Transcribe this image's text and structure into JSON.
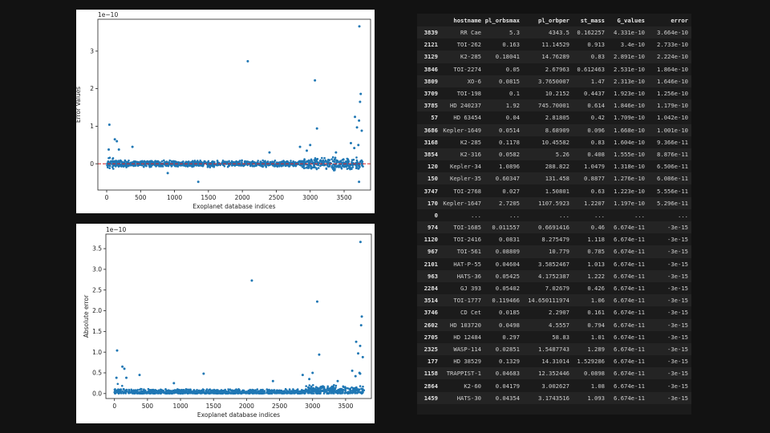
{
  "chart_data": [
    {
      "type": "scatter",
      "title": "",
      "xlabel": "Exoplanet database indices",
      "ylabel": "Error Values",
      "offset_label": "1e−10",
      "xlim": [
        -130,
        3890
      ],
      "ylim": [
        -0.7,
        3.85
      ],
      "xticks": [
        0,
        500,
        1000,
        1500,
        2000,
        2500,
        3000,
        3500
      ],
      "yticks": [
        0,
        1,
        2,
        3
      ],
      "reference_line": {
        "y": 0,
        "color": "#d62728",
        "style": "dashed"
      },
      "marker_color": "#1f77b4",
      "grid": false,
      "outliers": [
        {
          "x": 3725,
          "y": 3.66
        },
        {
          "x": 2080,
          "y": 2.73
        },
        {
          "x": 3070,
          "y": 2.22
        },
        {
          "x": 3745,
          "y": 1.86
        },
        {
          "x": 3735,
          "y": 1.65
        },
        {
          "x": 3660,
          "y": 1.25
        },
        {
          "x": 3720,
          "y": 1.15
        },
        {
          "x": 40,
          "y": 1.04
        },
        {
          "x": 3100,
          "y": 0.94
        },
        {
          "x": 3690,
          "y": 0.97
        },
        {
          "x": 3760,
          "y": 0.88
        },
        {
          "x": 120,
          "y": 0.65
        },
        {
          "x": 150,
          "y": 0.6
        },
        {
          "x": 3600,
          "y": 0.55
        },
        {
          "x": 2850,
          "y": 0.45
        },
        {
          "x": 380,
          "y": 0.45
        },
        {
          "x": 3710,
          "y": 0.5
        },
        {
          "x": 3650,
          "y": 0.42
        },
        {
          "x": 2950,
          "y": 0.35
        },
        {
          "x": 180,
          "y": 0.38
        },
        {
          "x": 30,
          "y": 0.38
        },
        {
          "x": 1350,
          "y": -0.48
        },
        {
          "x": 3720,
          "y": -0.48
        },
        {
          "x": 900,
          "y": -0.25
        },
        {
          "x": 3000,
          "y": 0.5
        },
        {
          "x": 3380,
          "y": 0.3
        },
        {
          "x": 2400,
          "y": 0.3
        }
      ]
    },
    {
      "type": "scatter",
      "title": "",
      "xlabel": "Exoplanet database indices",
      "ylabel": "Absolute error",
      "offset_label": "1e−10",
      "xlim": [
        -130,
        3890
      ],
      "ylim": [
        -0.12,
        3.85
      ],
      "xticks": [
        0,
        500,
        1000,
        1500,
        2000,
        2500,
        3000,
        3500
      ],
      "yticks": [
        0.0,
        0.5,
        1.0,
        1.5,
        2.0,
        2.5,
        3.0,
        3.5
      ],
      "ytick_labels": [
        "0.0",
        "0.5",
        "1.0",
        "1.5",
        "2.0",
        "2.5",
        "3.0",
        "3.5"
      ],
      "marker_color": "#1f77b4",
      "grid": false,
      "outliers": [
        {
          "x": 3725,
          "y": 3.66
        },
        {
          "x": 2080,
          "y": 2.73
        },
        {
          "x": 3070,
          "y": 2.22
        },
        {
          "x": 3745,
          "y": 1.86
        },
        {
          "x": 3735,
          "y": 1.65
        },
        {
          "x": 3660,
          "y": 1.25
        },
        {
          "x": 3720,
          "y": 1.15
        },
        {
          "x": 40,
          "y": 1.04
        },
        {
          "x": 3100,
          "y": 0.94
        },
        {
          "x": 3690,
          "y": 0.97
        },
        {
          "x": 3760,
          "y": 0.88
        },
        {
          "x": 120,
          "y": 0.65
        },
        {
          "x": 150,
          "y": 0.6
        },
        {
          "x": 3600,
          "y": 0.55
        },
        {
          "x": 2850,
          "y": 0.45
        },
        {
          "x": 380,
          "y": 0.45
        },
        {
          "x": 1350,
          "y": 0.48
        },
        {
          "x": 3710,
          "y": 0.5
        },
        {
          "x": 3650,
          "y": 0.42
        },
        {
          "x": 2950,
          "y": 0.35
        },
        {
          "x": 180,
          "y": 0.38
        },
        {
          "x": 30,
          "y": 0.38
        },
        {
          "x": 3720,
          "y": 0.48
        },
        {
          "x": 3000,
          "y": 0.5
        },
        {
          "x": 900,
          "y": 0.25
        },
        {
          "x": 3380,
          "y": 0.3
        },
        {
          "x": 2400,
          "y": 0.3
        }
      ]
    },
    {
      "type": "table",
      "columns": [
        "",
        "hostname",
        "pl_orbsmax",
        "pl_orbper",
        "st_mass",
        "G_values",
        "error"
      ],
      "rows": [
        [
          "3839",
          "RR Cae",
          "5.3",
          "4343.5",
          "0.162257",
          "4.331e-10",
          "3.664e-10"
        ],
        [
          "2121",
          "TOI-262",
          "0.163",
          "11.14529",
          "0.913",
          "3.4e-10",
          "2.733e-10"
        ],
        [
          "3129",
          "K2-285",
          "0.18041",
          "14.76289",
          "0.83",
          "2.891e-10",
          "2.224e-10"
        ],
        [
          "3846",
          "TOI-2274",
          "0.05",
          "2.67963",
          "0.612463",
          "2.531e-10",
          "1.864e-10"
        ],
        [
          "3809",
          "XO-6",
          "0.0815",
          "3.7650007",
          "1.47",
          "2.313e-10",
          "1.646e-10"
        ],
        [
          "3709",
          "TOI-198",
          "0.1",
          "10.2152",
          "0.4437",
          "1.923e-10",
          "1.256e-10"
        ],
        [
          "3785",
          "HD 240237",
          "1.92",
          "745.70001",
          "0.614",
          "1.846e-10",
          "1.179e-10"
        ],
        [
          "57",
          "HD 63454",
          "0.04",
          "2.81805",
          "0.42",
          "1.709e-10",
          "1.042e-10"
        ],
        [
          "3686",
          "Kepler-1649",
          "0.0514",
          "8.68909",
          "0.096",
          "1.668e-10",
          "1.001e-10"
        ],
        [
          "3168",
          "K2-285",
          "0.1178",
          "10.45582",
          "0.83",
          "1.604e-10",
          "9.366e-11"
        ],
        [
          "3854",
          "K2-316",
          "0.0582",
          "5.26",
          "0.408",
          "1.555e-10",
          "8.876e-11"
        ],
        [
          "120",
          "Kepler-34",
          "1.0896",
          "288.822",
          "1.0479",
          "1.318e-10",
          "6.506e-11"
        ],
        [
          "150",
          "Kepler-35",
          "0.60347",
          "131.458",
          "0.8877",
          "1.276e-10",
          "6.086e-11"
        ],
        [
          "3747",
          "TOI-2768",
          "0.027",
          "1.50801",
          "0.63",
          "1.223e-10",
          "5.556e-11"
        ],
        [
          "170",
          "Kepler-1647",
          "2.7205",
          "1107.5923",
          "1.2207",
          "1.197e-10",
          "5.296e-11"
        ],
        [
          "0",
          "...",
          "...",
          "...",
          "...",
          "...",
          "..."
        ],
        [
          "974",
          "TOI-1685",
          "0.011557",
          "0.6691416",
          "0.46",
          "6.674e-11",
          "-3e-15"
        ],
        [
          "1120",
          "TOI-2416",
          "0.0831",
          "8.275479",
          "1.118",
          "6.674e-11",
          "-3e-15"
        ],
        [
          "967",
          "TOI-561",
          "0.08809",
          "10.779",
          "0.785",
          "6.674e-11",
          "-3e-15"
        ],
        [
          "2101",
          "HAT-P-55",
          "0.04604",
          "3.5852467",
          "1.013",
          "6.674e-11",
          "-3e-15"
        ],
        [
          "963",
          "HATS-36",
          "0.05425",
          "4.1752387",
          "1.222",
          "6.674e-11",
          "-3e-15"
        ],
        [
          "2284",
          "GJ 393",
          "0.05402",
          "7.02679",
          "0.426",
          "6.674e-11",
          "-3e-15"
        ],
        [
          "3514",
          "TOI-1777",
          "0.119466",
          "14.650111974",
          "1.06",
          "6.674e-11",
          "-3e-15"
        ],
        [
          "3746",
          "CD Cet",
          "0.0185",
          "2.2907",
          "0.161",
          "6.674e-11",
          "-3e-15"
        ],
        [
          "2602",
          "HD 103720",
          "0.0498",
          "4.5557",
          "0.794",
          "6.674e-11",
          "-3e-15"
        ],
        [
          "2705",
          "HD 12484",
          "0.297",
          "58.83",
          "1.01",
          "6.674e-11",
          "-3e-15"
        ],
        [
          "2325",
          "WASP-114",
          "0.02851",
          "1.5487743",
          "1.289",
          "6.674e-11",
          "-3e-15"
        ],
        [
          "177",
          "HD 38529",
          "0.1329",
          "14.31014",
          "1.529286",
          "6.674e-11",
          "-3e-15"
        ],
        [
          "1158",
          "TRAPPIST-1",
          "0.04683",
          "12.352446",
          "0.0898",
          "6.674e-11",
          "-3e-15"
        ],
        [
          "2864",
          "K2-60",
          "0.04179",
          "3.002627",
          "1.08",
          "6.674e-11",
          "-3e-15"
        ],
        [
          "1459",
          "HATS-30",
          "0.04354",
          "3.1743516",
          "1.093",
          "6.674e-11",
          "-3e-15"
        ]
      ]
    }
  ]
}
